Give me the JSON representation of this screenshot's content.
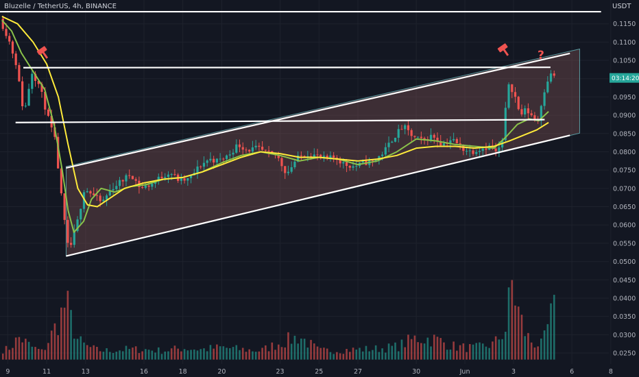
{
  "header": {
    "title": "Bluzelle / TetherUS, 4h, BINANCE",
    "unit": "USDT"
  },
  "price_label": "03:14:20",
  "annotations": {
    "question": "?"
  },
  "colors": {
    "bg": "#131722",
    "up": "#26a69a",
    "down": "#ef5350",
    "ma_fast": "#8bc34a",
    "ma_slow": "#ffeb3b",
    "lines": "#ffffff",
    "channel_fill": "#8d5a5a",
    "question": "#ef5350",
    "hammer": "#ef5350"
  },
  "chart_data": {
    "type": "candlestick",
    "title": "Bluzelle / TetherUS, 4h, BINANCE",
    "y_axis": {
      "min": 0.022,
      "max": 0.1215,
      "ticks": [
        "0.0250",
        "0.0300",
        "0.0350",
        "0.0400",
        "0.0450",
        "0.0500",
        "0.0550",
        "0.0600",
        "0.0650",
        "0.0700",
        "0.0750",
        "0.0800",
        "0.0850",
        "0.0900",
        "0.0950",
        "0.1000",
        "0.1050",
        "0.1100",
        "0.1150"
      ]
    },
    "x_axis": {
      "ticks": [
        "9",
        "11",
        "13",
        "16",
        "18",
        "20",
        "23",
        "25",
        "27",
        "30",
        "Jun",
        "3",
        "6",
        "8"
      ],
      "range_days": [
        8.6,
        39.9
      ]
    },
    "last_price": 0.1002,
    "trend_lines": [
      {
        "name": "top-horizontal",
        "from": [
          8.6,
          0.1183
        ],
        "to": [
          39.5,
          0.1183
        ]
      },
      {
        "name": "resistance",
        "from": [
          9.8,
          0.103
        ],
        "to": [
          36.9,
          0.1031
        ]
      },
      {
        "name": "mid-support",
        "from": [
          9.4,
          0.088
        ],
        "to": [
          36.6,
          0.0888
        ]
      },
      {
        "name": "channel-upper",
        "from": [
          12.0,
          0.0756
        ],
        "to": [
          37.9,
          0.1069
        ]
      },
      {
        "name": "channel-lower",
        "from": [
          12.0,
          0.0515
        ],
        "to": [
          37.9,
          0.0845
        ]
      }
    ],
    "channel": {
      "upper": [
        [
          12.0,
          0.076
        ],
        [
          38.4,
          0.1081
        ]
      ],
      "lower": [
        [
          12.0,
          0.0515
        ],
        [
          38.4,
          0.0851
        ]
      ]
    },
    "series": [
      {
        "name": "ma-fast",
        "points": [
          [
            8.7,
            0.116
          ],
          [
            9.2,
            0.113
          ],
          [
            9.7,
            0.107
          ],
          [
            10.3,
            0.102
          ],
          [
            10.9,
            0.097
          ],
          [
            11.4,
            0.087
          ],
          [
            11.8,
            0.075
          ],
          [
            12.1,
            0.064
          ],
          [
            12.4,
            0.058
          ],
          [
            12.9,
            0.061
          ],
          [
            13.3,
            0.067
          ],
          [
            13.8,
            0.07
          ],
          [
            14.5,
            0.069
          ],
          [
            15.3,
            0.0705
          ],
          [
            16.1,
            0.071
          ],
          [
            17.0,
            0.0725
          ],
          [
            18.0,
            0.073
          ],
          [
            19.0,
            0.0745
          ],
          [
            20.0,
            0.077
          ],
          [
            21.0,
            0.079
          ],
          [
            22.0,
            0.08
          ],
          [
            23.0,
            0.079
          ],
          [
            24.0,
            0.0775
          ],
          [
            25.0,
            0.0785
          ],
          [
            26.0,
            0.078
          ],
          [
            27.0,
            0.0765
          ],
          [
            28.0,
            0.0775
          ],
          [
            29.0,
            0.08
          ],
          [
            30.0,
            0.0835
          ],
          [
            31.0,
            0.083
          ],
          [
            32.0,
            0.082
          ],
          [
            33.0,
            0.0815
          ],
          [
            34.0,
            0.081
          ],
          [
            34.6,
            0.084
          ],
          [
            35.2,
            0.0875
          ],
          [
            35.8,
            0.089
          ],
          [
            36.3,
            0.0885
          ],
          [
            36.8,
            0.091
          ]
        ]
      },
      {
        "name": "ma-slow",
        "points": [
          [
            8.7,
            0.117
          ],
          [
            9.5,
            0.115
          ],
          [
            10.3,
            0.11
          ],
          [
            11.0,
            0.104
          ],
          [
            11.6,
            0.095
          ],
          [
            12.1,
            0.082
          ],
          [
            12.6,
            0.07
          ],
          [
            13.1,
            0.0655
          ],
          [
            13.6,
            0.065
          ],
          [
            14.3,
            0.0675
          ],
          [
            15.0,
            0.07
          ],
          [
            16.0,
            0.0715
          ],
          [
            17.0,
            0.0725
          ],
          [
            18.0,
            0.073
          ],
          [
            19.0,
            0.0745
          ],
          [
            20.0,
            0.0765
          ],
          [
            21.0,
            0.0785
          ],
          [
            22.0,
            0.08
          ],
          [
            23.0,
            0.0795
          ],
          [
            24.0,
            0.0785
          ],
          [
            25.0,
            0.0785
          ],
          [
            26.0,
            0.078
          ],
          [
            27.0,
            0.0775
          ],
          [
            28.0,
            0.078
          ],
          [
            29.0,
            0.079
          ],
          [
            30.0,
            0.081
          ],
          [
            31.0,
            0.0815
          ],
          [
            32.0,
            0.0815
          ],
          [
            33.0,
            0.081
          ],
          [
            34.0,
            0.0815
          ],
          [
            34.8,
            0.083
          ],
          [
            35.5,
            0.0845
          ],
          [
            36.2,
            0.086
          ],
          [
            36.8,
            0.088
          ]
        ]
      }
    ],
    "price_path": [
      [
        8.7,
        0.117
      ],
      [
        9.2,
        0.111
      ],
      [
        9.6,
        0.104
      ],
      [
        10.0,
        0.09
      ],
      [
        10.4,
        0.102
      ],
      [
        10.8,
        0.098
      ],
      [
        11.2,
        0.09
      ],
      [
        11.6,
        0.083
      ],
      [
        12.0,
        0.064
      ],
      [
        12.3,
        0.0525
      ],
      [
        12.5,
        0.056
      ],
      [
        12.8,
        0.062
      ],
      [
        13.1,
        0.07
      ],
      [
        13.5,
        0.0685
      ],
      [
        14.0,
        0.066
      ],
      [
        14.5,
        0.07
      ],
      [
        15.0,
        0.072
      ],
      [
        15.5,
        0.074
      ],
      [
        16.0,
        0.07
      ],
      [
        16.5,
        0.071
      ],
      [
        17.0,
        0.073
      ],
      [
        17.5,
        0.0745
      ],
      [
        18.0,
        0.072
      ],
      [
        18.5,
        0.0725
      ],
      [
        19.0,
        0.076
      ],
      [
        19.5,
        0.078
      ],
      [
        20.0,
        0.0775
      ],
      [
        20.5,
        0.079
      ],
      [
        21.0,
        0.082
      ],
      [
        21.5,
        0.0805
      ],
      [
        22.0,
        0.081
      ],
      [
        22.5,
        0.0795
      ],
      [
        23.0,
        0.079
      ],
      [
        23.5,
        0.074
      ],
      [
        24.0,
        0.078
      ],
      [
        24.5,
        0.0795
      ],
      [
        25.0,
        0.079
      ],
      [
        25.5,
        0.078
      ],
      [
        26.0,
        0.0785
      ],
      [
        26.5,
        0.0765
      ],
      [
        27.0,
        0.076
      ],
      [
        27.5,
        0.077
      ],
      [
        28.0,
        0.0775
      ],
      [
        28.5,
        0.08
      ],
      [
        29.0,
        0.084
      ],
      [
        29.5,
        0.087
      ],
      [
        30.0,
        0.084
      ],
      [
        30.5,
        0.083
      ],
      [
        31.0,
        0.0845
      ],
      [
        31.5,
        0.082
      ],
      [
        32.0,
        0.0835
      ],
      [
        32.5,
        0.081
      ],
      [
        33.0,
        0.08
      ],
      [
        33.5,
        0.081
      ],
      [
        34.0,
        0.0815
      ],
      [
        34.3,
        0.0795
      ],
      [
        34.6,
        0.083
      ],
      [
        34.9,
        0.099
      ],
      [
        35.2,
        0.096
      ],
      [
        35.5,
        0.09
      ],
      [
        35.8,
        0.0915
      ],
      [
        36.1,
        0.09
      ],
      [
        36.4,
        0.088
      ],
      [
        36.7,
        0.096
      ],
      [
        37.0,
        0.101
      ]
    ],
    "volume": [
      [
        9.0,
        0.0262
      ],
      [
        9.6,
        0.0298
      ],
      [
        10.2,
        0.027
      ],
      [
        10.8,
        0.0255
      ],
      [
        11.4,
        0.0322
      ],
      [
        11.8,
        0.0372
      ],
      [
        12.0,
        0.0402
      ],
      [
        12.2,
        0.0358
      ],
      [
        12.6,
        0.029
      ],
      [
        13.0,
        0.0272
      ],
      [
        13.6,
        0.026
      ],
      [
        14.2,
        0.0258
      ],
      [
        15.0,
        0.0262
      ],
      [
        16.0,
        0.0262
      ],
      [
        17.0,
        0.0258
      ],
      [
        18.0,
        0.0266
      ],
      [
        19.0,
        0.0262
      ],
      [
        20.0,
        0.0268
      ],
      [
        21.0,
        0.0262
      ],
      [
        22.0,
        0.0258
      ],
      [
        23.0,
        0.0282
      ],
      [
        24.0,
        0.03
      ],
      [
        25.0,
        0.0258
      ],
      [
        26.0,
        0.026
      ],
      [
        27.0,
        0.0262
      ],
      [
        28.0,
        0.0264
      ],
      [
        29.0,
        0.027
      ],
      [
        30.0,
        0.0296
      ],
      [
        31.0,
        0.0292
      ],
      [
        32.0,
        0.027
      ],
      [
        33.0,
        0.0266
      ],
      [
        34.0,
        0.0278
      ],
      [
        34.6,
        0.0322
      ],
      [
        34.9,
        0.0462
      ],
      [
        35.2,
        0.0385
      ],
      [
        35.6,
        0.031
      ],
      [
        36.0,
        0.028
      ],
      [
        36.5,
        0.0276
      ],
      [
        37.0,
        0.0375
      ]
    ]
  }
}
